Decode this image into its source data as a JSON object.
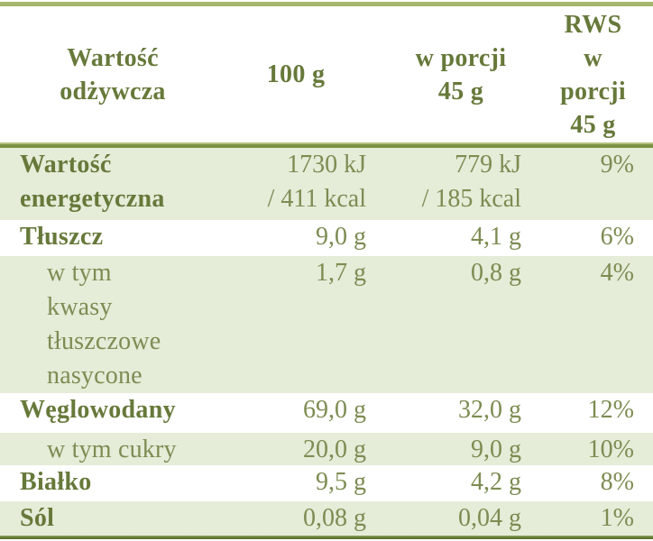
{
  "header": {
    "nutrient": "Wartość\nodżywcza",
    "per_100g": "100 g",
    "per_portion": "w porcji\n45 g",
    "rws": "RWS\nw\nporcji\n45 g"
  },
  "rows": [
    {
      "label": "Wartość\nenergetyczna",
      "per_100g": "1730 kJ\n/ 411 kcal",
      "per_portion": "779 kJ\n/ 185 kcal",
      "rws": "9%"
    },
    {
      "label": "Tłuszcz",
      "per_100g": "9,0 g",
      "per_portion": "4,1 g",
      "rws": "6%"
    },
    {
      "label": "w tym\nkwasy\ntłuszczowe\nnasycone",
      "per_100g": "1,7 g",
      "per_portion": "0,8 g",
      "rws": "4%"
    },
    {
      "label": "Węglowodany",
      "per_100g": "69,0 g",
      "per_portion": "32,0 g",
      "rws": "12%"
    },
    {
      "label": "w tym cukry",
      "per_100g": "20,0 g",
      "per_portion": "9,0 g",
      "rws": "10%"
    },
    {
      "label": "Białko",
      "per_100g": "9,5 g",
      "per_portion": "4,2 g",
      "rws": "8%"
    },
    {
      "label": "Sól",
      "per_100g": "0,08 g",
      "per_portion": "0,04 g",
      "rws": "1%"
    }
  ],
  "colors": {
    "text_bold": "#67793a",
    "text_regular": "#7d8c52",
    "row_shade": "#e5ecd8",
    "border_top": "#a6b56e",
    "header_divider": "#7e9144",
    "border_bottom": "#5f7734",
    "background": "#ffffff"
  }
}
